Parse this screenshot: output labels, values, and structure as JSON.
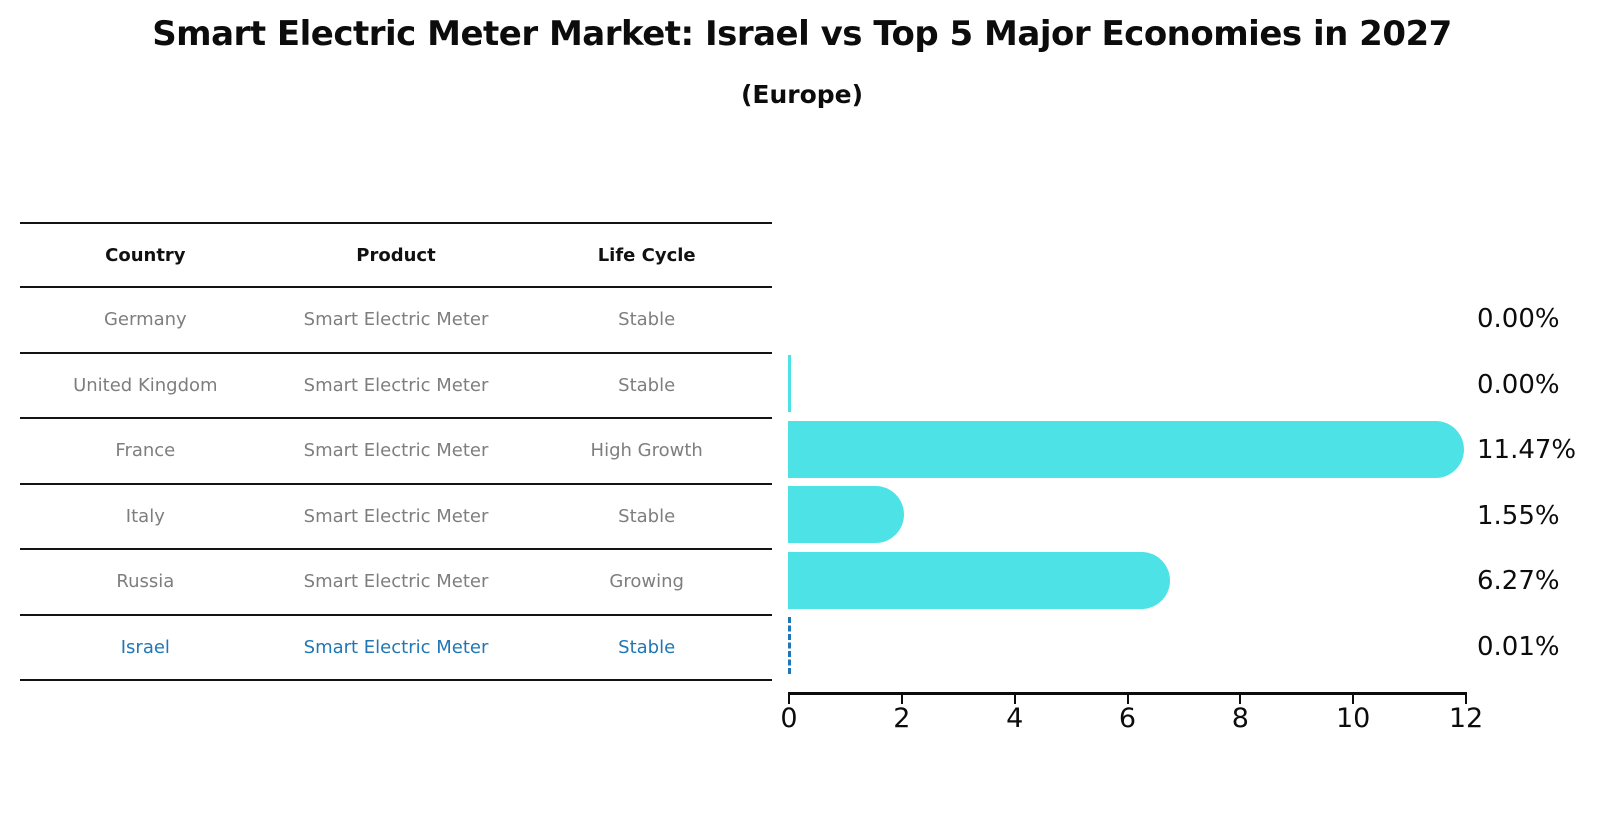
{
  "title": "Smart Electric Meter Market: Israel vs Top 5 Major Economies in 2027",
  "subtitle": "(Europe)",
  "table": {
    "headers": [
      "Country",
      "Product",
      "Life Cycle"
    ],
    "rows": [
      {
        "country": "Germany",
        "product": "Smart Electric Meter",
        "life_cycle": "Stable",
        "highlight": false
      },
      {
        "country": "United Kingdom",
        "product": "Smart Electric Meter",
        "life_cycle": "Stable",
        "highlight": false
      },
      {
        "country": "France",
        "product": "Smart Electric Meter",
        "life_cycle": "High Growth",
        "highlight": false
      },
      {
        "country": "Italy",
        "product": "Smart Electric Meter",
        "life_cycle": "Stable",
        "highlight": false
      },
      {
        "country": "Russia",
        "product": "Smart Electric Meter",
        "life_cycle": "Growing",
        "highlight": false
      },
      {
        "country": "Israel",
        "product": "Smart Electric Meter",
        "life_cycle": "Stable",
        "highlight": true
      }
    ]
  },
  "chart_data": {
    "type": "bar",
    "orientation": "horizontal",
    "title": "Smart Electric Meter Market: Israel vs Top 5 Major Economies in 2027",
    "subtitle": "(Europe)",
    "categories": [
      "Germany",
      "United Kingdom",
      "France",
      "Italy",
      "Russia",
      "Israel"
    ],
    "values": [
      0.0,
      0.0,
      11.47,
      1.55,
      6.27,
      0.01
    ],
    "value_labels": [
      "0.00%",
      "0.00%",
      "11.47%",
      "1.55%",
      "6.27%",
      "0.01%"
    ],
    "bar_styles": [
      "none",
      "sliver",
      "bar",
      "bar",
      "bar",
      "dashed-marker"
    ],
    "xlim": [
      0,
      12
    ],
    "x_ticks": [
      0,
      2,
      4,
      6,
      8,
      10,
      12
    ],
    "x_tick_labels": [
      "0",
      "2",
      "4",
      "6",
      "8",
      "10",
      "12"
    ],
    "grid": false,
    "legend": "none",
    "bar_color": "#4ce2e6",
    "highlight_color": "#1f77b4",
    "label_color": "#0c0c0c",
    "table_text_color": "#7e7e7e"
  }
}
